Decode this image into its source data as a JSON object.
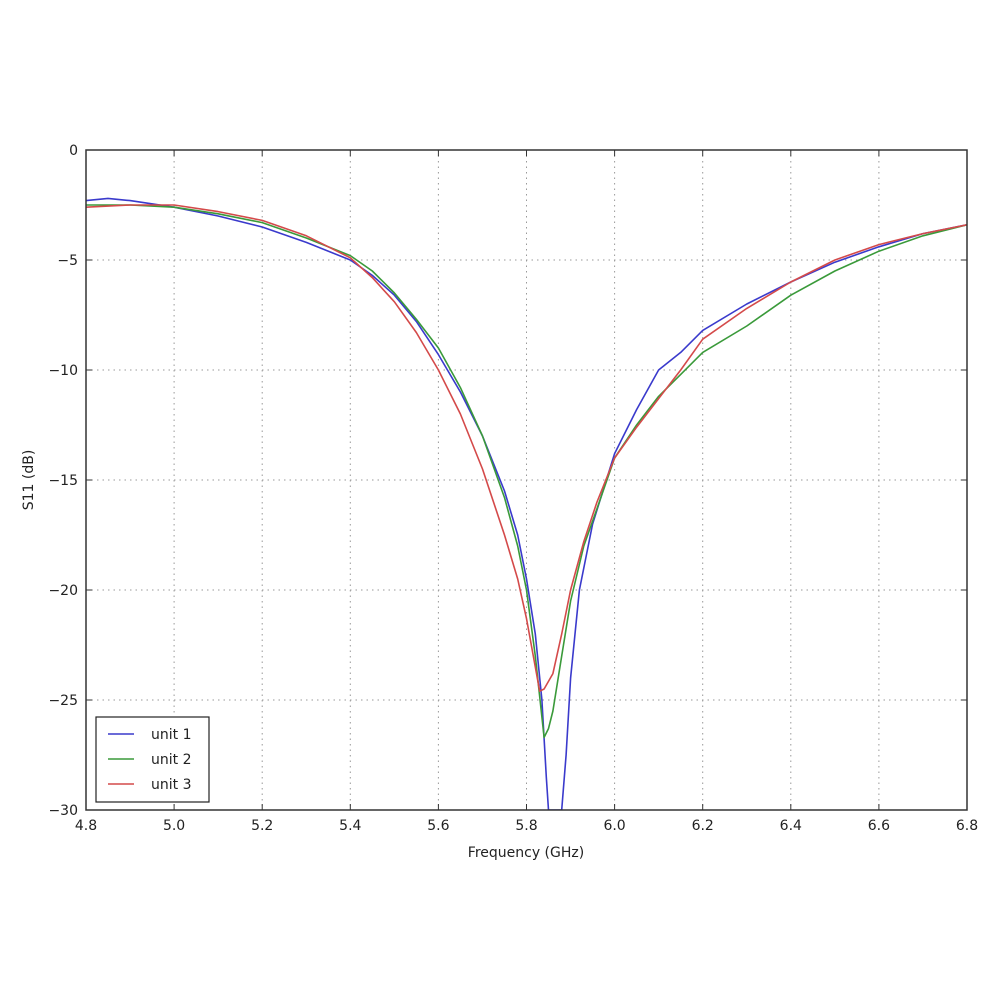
{
  "chart_data": {
    "type": "line",
    "title": "",
    "xlabel": "Frequency (GHz)",
    "ylabel": "S11 (dB)",
    "xlim": [
      4.8,
      6.8
    ],
    "ylim": [
      -30,
      0
    ],
    "xticks": [
      "4.8",
      "5.0",
      "5.2",
      "5.4",
      "5.6",
      "5.8",
      "6.0",
      "6.2",
      "6.4",
      "6.6",
      "6.8"
    ],
    "yticks": [
      "0",
      "-5",
      "-10",
      "-15",
      "-20",
      "-25",
      "-30"
    ],
    "grid": true,
    "legend_position": "lower left",
    "series": [
      {
        "name": "unit 1",
        "color": "#3a3acc",
        "x": [
          4.8,
          4.85,
          4.9,
          5.0,
          5.1,
          5.2,
          5.3,
          5.4,
          5.45,
          5.5,
          5.55,
          5.6,
          5.65,
          5.7,
          5.75,
          5.78,
          5.8,
          5.82,
          5.835,
          5.845,
          5.85,
          5.86,
          5.875,
          5.88,
          5.89,
          5.9,
          5.92,
          5.95,
          6.0,
          6.05,
          6.1,
          6.15,
          6.2,
          6.3,
          6.4,
          6.5,
          6.6,
          6.7,
          6.8
        ],
        "y": [
          -2.3,
          -2.2,
          -2.3,
          -2.6,
          -3.0,
          -3.5,
          -4.2,
          -5.0,
          -5.7,
          -6.6,
          -7.8,
          -9.3,
          -11.0,
          -13.0,
          -15.5,
          -17.5,
          -19.5,
          -22.0,
          -25.0,
          -28.5,
          -30.0,
          -30.0,
          -30.0,
          -30.0,
          -27.5,
          -24.0,
          -20.0,
          -17.0,
          -13.8,
          -11.8,
          -10.0,
          -9.2,
          -8.2,
          -7.0,
          -6.0,
          -5.1,
          -4.4,
          -3.8,
          -3.4
        ]
      },
      {
        "name": "unit 2",
        "color": "#3a9a3a",
        "x": [
          4.8,
          4.9,
          5.0,
          5.1,
          5.2,
          5.3,
          5.4,
          5.45,
          5.5,
          5.55,
          5.6,
          5.65,
          5.7,
          5.75,
          5.78,
          5.8,
          5.82,
          5.84,
          5.85,
          5.86,
          5.88,
          5.9,
          5.93,
          5.96,
          6.0,
          6.05,
          6.1,
          6.15,
          6.2,
          6.3,
          6.4,
          6.5,
          6.6,
          6.7,
          6.8
        ],
        "y": [
          -2.5,
          -2.5,
          -2.6,
          -2.9,
          -3.3,
          -4.0,
          -4.8,
          -5.5,
          -6.5,
          -7.7,
          -9.0,
          -10.8,
          -13.0,
          -15.8,
          -18.0,
          -20.0,
          -23.0,
          -26.7,
          -26.3,
          -25.5,
          -23.0,
          -20.5,
          -18.0,
          -16.3,
          -14.0,
          -12.5,
          -11.2,
          -10.2,
          -9.2,
          -8.0,
          -6.6,
          -5.5,
          -4.6,
          -3.9,
          -3.4
        ]
      },
      {
        "name": "unit 3",
        "color": "#d44a4a",
        "x": [
          4.8,
          4.9,
          5.0,
          5.1,
          5.2,
          5.3,
          5.4,
          5.45,
          5.5,
          5.55,
          5.6,
          5.65,
          5.7,
          5.75,
          5.78,
          5.8,
          5.82,
          5.83,
          5.84,
          5.86,
          5.88,
          5.9,
          5.93,
          5.96,
          6.0,
          6.05,
          6.1,
          6.15,
          6.2,
          6.3,
          6.4,
          6.5,
          6.6,
          6.7,
          6.8
        ],
        "y": [
          -2.6,
          -2.5,
          -2.5,
          -2.8,
          -3.2,
          -3.9,
          -4.9,
          -5.8,
          -6.9,
          -8.3,
          -10.0,
          -12.0,
          -14.5,
          -17.5,
          -19.5,
          -21.3,
          -23.5,
          -24.6,
          -24.5,
          -23.8,
          -22.0,
          -20.0,
          -17.8,
          -16.0,
          -14.0,
          -12.6,
          -11.3,
          -10.0,
          -8.6,
          -7.2,
          -6.0,
          -5.0,
          -4.3,
          -3.8,
          -3.4
        ]
      }
    ]
  }
}
